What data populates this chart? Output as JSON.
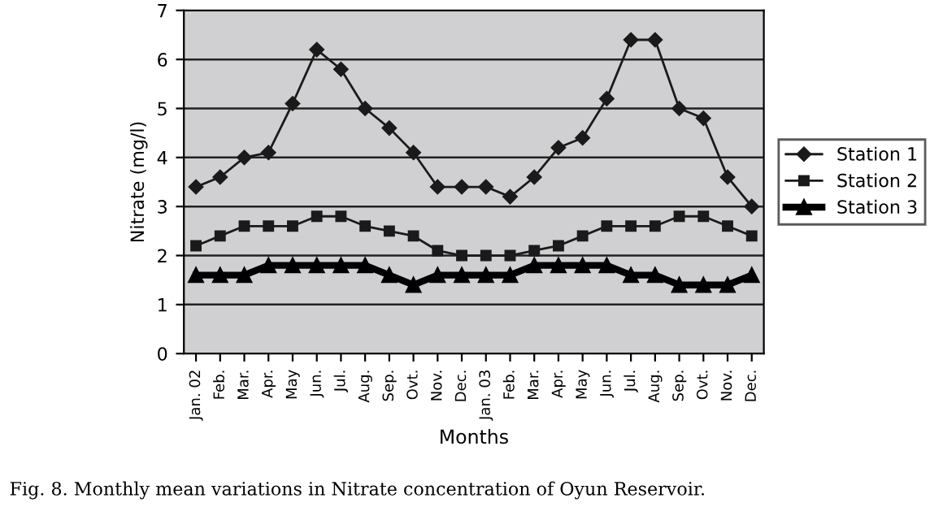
{
  "chart_data": {
    "type": "line",
    "categories": [
      "Jan. 02",
      "Feb.",
      "Mar.",
      "Apr.",
      "May",
      "Jun.",
      "Jul.",
      "Aug.",
      "Sep.",
      "Ovt.",
      "Nov.",
      "Dec.",
      "Jan. 03",
      "Feb.",
      "Mar.",
      "Apr.",
      "May",
      "Jun.",
      "Jul.",
      "Aug.",
      "Sep.",
      "Ovt.",
      "Nov.",
      "Dec."
    ],
    "series": [
      {
        "name": "Station 1",
        "color": "#1a1a1a",
        "marker": "diamond",
        "values": [
          3.4,
          3.6,
          4.0,
          4.1,
          5.1,
          6.2,
          5.8,
          5.0,
          4.6,
          4.1,
          3.4,
          3.4,
          3.4,
          3.2,
          3.6,
          4.2,
          4.4,
          5.2,
          6.4,
          6.4,
          5.0,
          4.8,
          3.6,
          3.0
        ]
      },
      {
        "name": "Station 2",
        "color": "#1a1a1a",
        "marker": "square",
        "values": [
          2.2,
          2.4,
          2.6,
          2.6,
          2.6,
          2.8,
          2.8,
          2.6,
          2.5,
          2.4,
          2.1,
          2.0,
          2.0,
          2.0,
          2.1,
          2.2,
          2.4,
          2.6,
          2.6,
          2.6,
          2.8,
          2.8,
          2.6,
          2.4
        ]
      },
      {
        "name": "Station 3",
        "color": "#000000",
        "marker": "triangle",
        "values": [
          1.6,
          1.6,
          1.6,
          1.8,
          1.8,
          1.8,
          1.8,
          1.8,
          1.6,
          1.4,
          1.6,
          1.6,
          1.6,
          1.6,
          1.8,
          1.8,
          1.8,
          1.8,
          1.6,
          1.6,
          1.4,
          1.4,
          1.4,
          1.6
        ]
      }
    ],
    "xlabel": "Months",
    "ylabel": "Nitrate (mg/l)",
    "ylim": [
      0,
      7
    ],
    "yticks": [
      0,
      1,
      2,
      3,
      4,
      5,
      6,
      7
    ],
    "grid": "y",
    "legend": "right",
    "line_style": "solid",
    "annotations": [
      "Fig. 8. Monthly mean variations in Nitrate concentration of Oyun Reservoir."
    ]
  }
}
